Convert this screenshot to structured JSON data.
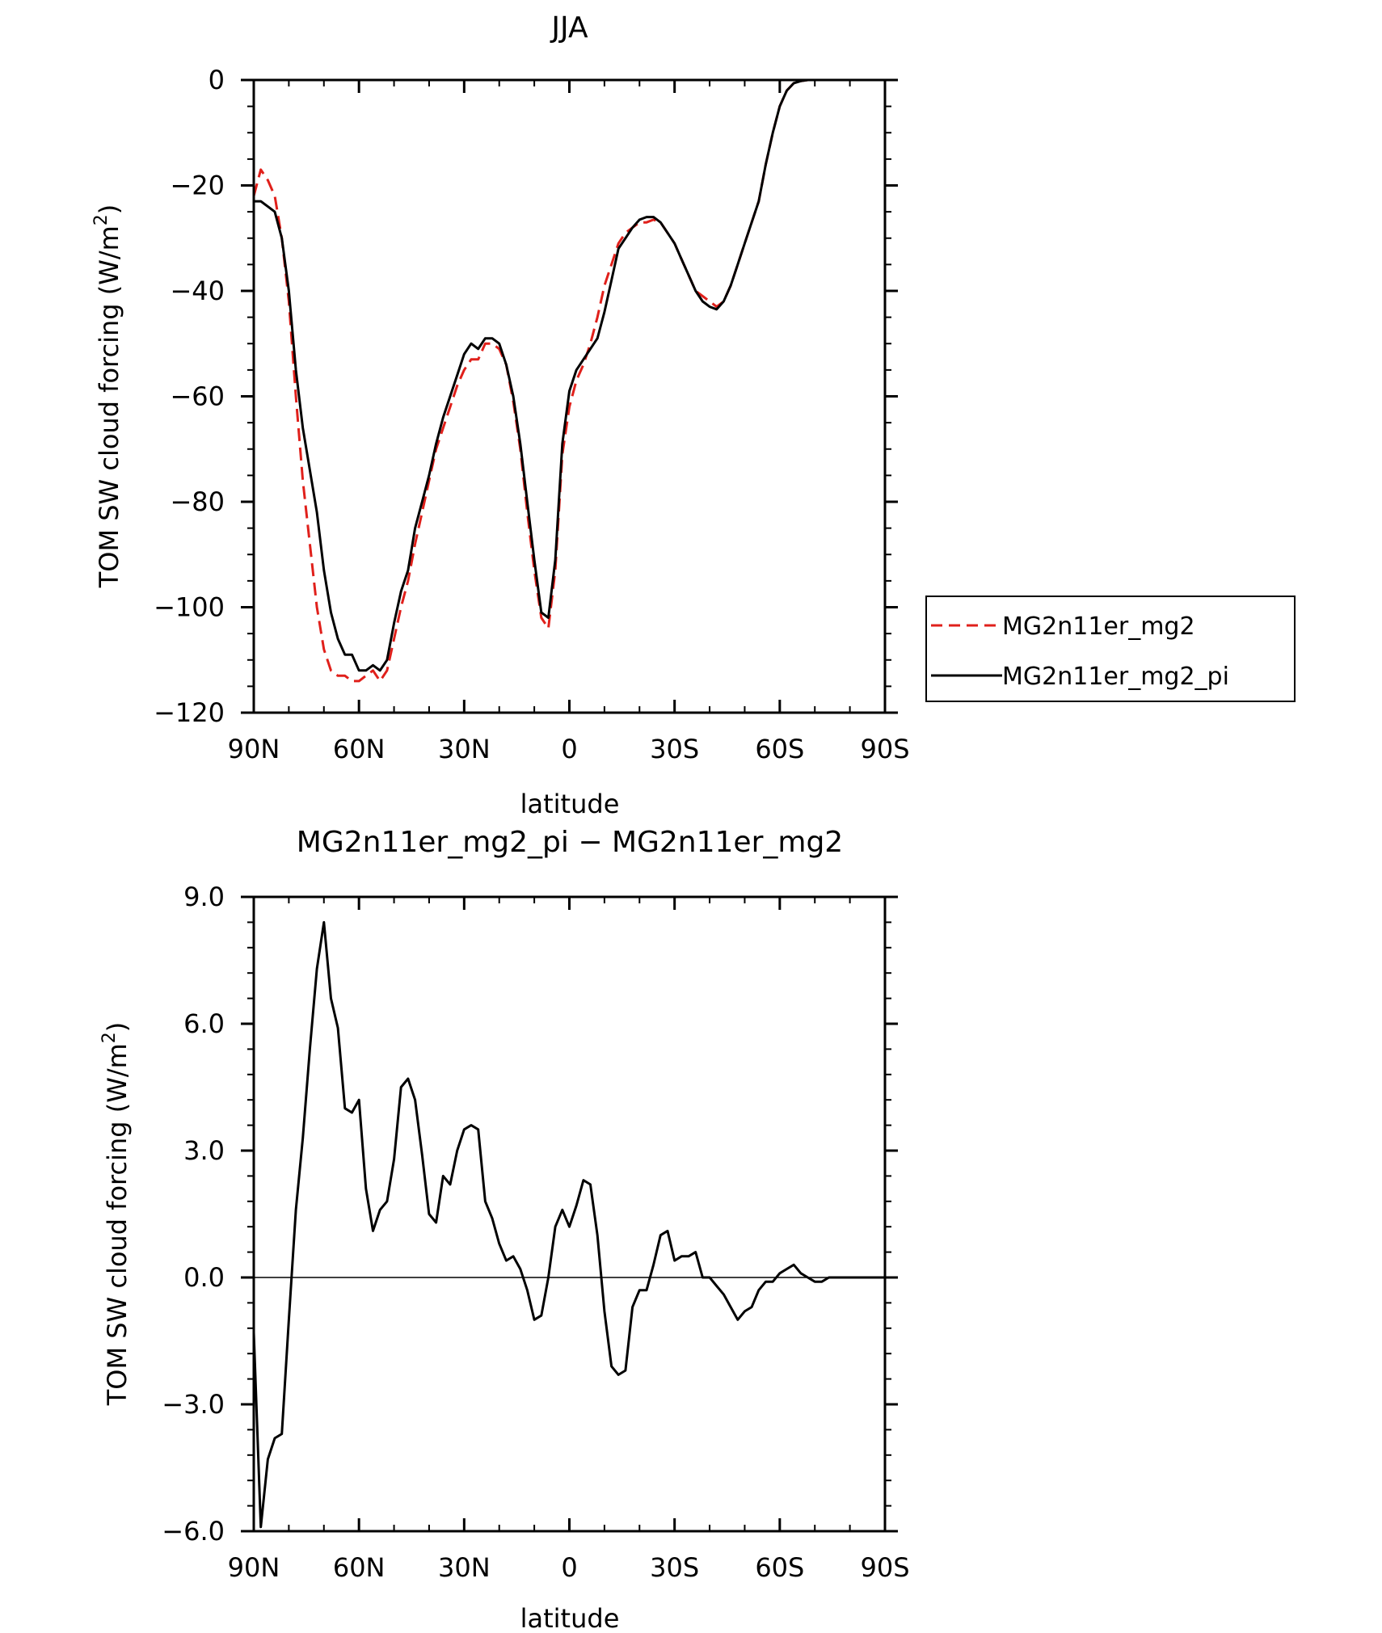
{
  "chart_data": [
    {
      "type": "line",
      "title": "JJA",
      "xlabel": "latitude",
      "ylabel": "TOM SW cloud forcing (W/m²)",
      "ylabel_main": "TOM SW cloud forcing (W/m",
      "ylabel_sup": "2",
      "ylabel_close": ")",
      "xlim": [
        90,
        -90
      ],
      "ylim": [
        -120,
        0
      ],
      "x_ticks": [
        90,
        60,
        30,
        0,
        -30,
        -60,
        -90
      ],
      "x_tick_labels": [
        "90N",
        "60N",
        "30N",
        "0",
        "30S",
        "60S",
        "90S"
      ],
      "y_ticks": [
        0,
        -20,
        -40,
        -60,
        -80,
        -100,
        -120
      ],
      "y_tick_labels": [
        "0",
        "−20",
        "−40",
        "−60",
        "−80",
        "−100",
        "−120"
      ],
      "legend": "right",
      "series": [
        {
          "name": "MG2n11er_mg2",
          "color": "#e0201b",
          "dash": "dashed",
          "points": [
            [
              90,
              -22
            ],
            [
              88,
              -17
            ],
            [
              86,
              -19
            ],
            [
              84,
              -22
            ],
            [
              82,
              -30
            ],
            [
              80,
              -42
            ],
            [
              78,
              -60
            ],
            [
              76,
              -76
            ],
            [
              74,
              -88
            ],
            [
              72,
              -100
            ],
            [
              70,
              -108
            ],
            [
              68,
              -112
            ],
            [
              66,
              -113
            ],
            [
              64,
              -113
            ],
            [
              62,
              -114
            ],
            [
              60,
              -114
            ],
            [
              58,
              -113
            ],
            [
              56,
              -112
            ],
            [
              54,
              -114
            ],
            [
              52,
              -112
            ],
            [
              50,
              -106
            ],
            [
              48,
              -100
            ],
            [
              46,
              -95
            ],
            [
              44,
              -88
            ],
            [
              42,
              -82
            ],
            [
              40,
              -76
            ],
            [
              38,
              -70
            ],
            [
              36,
              -66
            ],
            [
              34,
              -62
            ],
            [
              32,
              -58
            ],
            [
              30,
              -55
            ],
            [
              28,
              -53
            ],
            [
              26,
              -53
            ],
            [
              24,
              -50
            ],
            [
              22,
              -50
            ],
            [
              20,
              -51
            ],
            [
              18,
              -54
            ],
            [
              16,
              -61
            ],
            [
              14,
              -70
            ],
            [
              12,
              -82
            ],
            [
              10,
              -93
            ],
            [
              8,
              -102
            ],
            [
              6,
              -104
            ],
            [
              4,
              -93
            ],
            [
              2,
              -71
            ],
            [
              0,
              -62
            ],
            [
              -2,
              -57
            ],
            [
              -4,
              -54
            ],
            [
              -6,
              -50
            ],
            [
              -8,
              -45
            ],
            [
              -10,
              -39
            ],
            [
              -12,
              -35
            ],
            [
              -14,
              -31
            ],
            [
              -16,
              -29
            ],
            [
              -18,
              -28
            ],
            [
              -20,
              -27
            ],
            [
              -22,
              -27
            ],
            [
              -24,
              -26.5
            ],
            [
              -26,
              -27
            ],
            [
              -28,
              -29
            ],
            [
              -30,
              -31
            ],
            [
              -32,
              -34
            ],
            [
              -34,
              -37
            ],
            [
              -36,
              -40
            ],
            [
              -38,
              -41
            ],
            [
              -40,
              -42
            ],
            [
              -42,
              -43
            ],
            [
              -44,
              -42
            ],
            [
              -46,
              -39
            ],
            [
              -48,
              -35
            ],
            [
              -50,
              -31
            ],
            [
              -52,
              -27
            ],
            [
              -54,
              -23
            ],
            [
              -56,
              -16
            ],
            [
              -58,
              -10
            ],
            [
              -60,
              -5
            ],
            [
              -62,
              -2
            ],
            [
              -64,
              -0.6
            ],
            [
              -66,
              -0.2
            ],
            [
              -68,
              0
            ],
            [
              -70,
              0
            ],
            [
              -75,
              0
            ],
            [
              -80,
              0
            ],
            [
              -85,
              0
            ],
            [
              -90,
              0
            ]
          ]
        },
        {
          "name": "MG2n11er_mg2_pi",
          "color": "#000000",
          "dash": "solid",
          "points": [
            [
              90,
              -23
            ],
            [
              88,
              -23
            ],
            [
              86,
              -24
            ],
            [
              84,
              -25
            ],
            [
              82,
              -30
            ],
            [
              80,
              -40
            ],
            [
              78,
              -55
            ],
            [
              76,
              -66
            ],
            [
              74,
              -74
            ],
            [
              72,
              -82
            ],
            [
              70,
              -93
            ],
            [
              68,
              -101
            ],
            [
              66,
              -106
            ],
            [
              64,
              -109
            ],
            [
              62,
              -109
            ],
            [
              60,
              -112
            ],
            [
              58,
              -112
            ],
            [
              56,
              -111
            ],
            [
              54,
              -112
            ],
            [
              52,
              -110
            ],
            [
              50,
              -103
            ],
            [
              48,
              -97
            ],
            [
              46,
              -93
            ],
            [
              44,
              -85
            ],
            [
              42,
              -80
            ],
            [
              40,
              -75
            ],
            [
              38,
              -69
            ],
            [
              36,
              -64
            ],
            [
              34,
              -60
            ],
            [
              32,
              -56
            ],
            [
              30,
              -52
            ],
            [
              28,
              -50
            ],
            [
              26,
              -51
            ],
            [
              24,
              -49
            ],
            [
              22,
              -49
            ],
            [
              20,
              -50
            ],
            [
              18,
              -54
            ],
            [
              16,
              -60
            ],
            [
              14,
              -69
            ],
            [
              12,
              -80
            ],
            [
              10,
              -91
            ],
            [
              8,
              -101
            ],
            [
              6,
              -102
            ],
            [
              4,
              -91
            ],
            [
              2,
              -69
            ],
            [
              0,
              -59
            ],
            [
              -2,
              -55
            ],
            [
              -4,
              -53
            ],
            [
              -6,
              -51
            ],
            [
              -8,
              -49
            ],
            [
              -10,
              -44
            ],
            [
              -12,
              -38
            ],
            [
              -14,
              -32
            ],
            [
              -16,
              -30
            ],
            [
              -18,
              -28
            ],
            [
              -20,
              -26.5
            ],
            [
              -22,
              -26
            ],
            [
              -24,
              -26
            ],
            [
              -26,
              -27
            ],
            [
              -28,
              -29
            ],
            [
              -30,
              -31
            ],
            [
              -32,
              -34
            ],
            [
              -34,
              -37
            ],
            [
              -36,
              -40
            ],
            [
              -38,
              -42
            ],
            [
              -40,
              -43
            ],
            [
              -42,
              -43.5
            ],
            [
              -44,
              -42
            ],
            [
              -46,
              -39
            ],
            [
              -48,
              -35
            ],
            [
              -50,
              -31
            ],
            [
              -52,
              -27
            ],
            [
              -54,
              -23
            ],
            [
              -56,
              -16
            ],
            [
              -58,
              -10
            ],
            [
              -60,
              -5
            ],
            [
              -62,
              -2
            ],
            [
              -64,
              -0.6
            ],
            [
              -66,
              -0.2
            ],
            [
              -68,
              0
            ],
            [
              -70,
              0
            ],
            [
              -75,
              0
            ],
            [
              -80,
              0
            ],
            [
              -85,
              0
            ],
            [
              -90,
              0
            ]
          ]
        }
      ]
    },
    {
      "type": "line",
      "title": "MG2n11er_mg2_pi − MG2n11er_mg2",
      "xlabel": "latitude",
      "ylabel": "TOM SW cloud forcing (W/m²)",
      "ylabel_main": "TOM SW cloud forcing (W/m",
      "ylabel_sup": "2",
      "ylabel_close": ")",
      "xlim": [
        90,
        -90
      ],
      "ylim": [
        -6,
        9
      ],
      "x_ticks": [
        90,
        60,
        30,
        0,
        -30,
        -60,
        -90
      ],
      "x_tick_labels": [
        "90N",
        "60N",
        "30N",
        "0",
        "30S",
        "60S",
        "90S"
      ],
      "y_ticks": [
        9,
        6,
        3,
        0,
        -3,
        -6
      ],
      "y_tick_labels": [
        "9.0",
        "6.0",
        "3.0",
        "0.0",
        "−3.0",
        "−6.0"
      ],
      "series": [
        {
          "color": "#000000",
          "dash": "solid",
          "points": [
            [
              90,
              -1.3
            ],
            [
              88,
              -5.9
            ],
            [
              86,
              -4.3
            ],
            [
              84,
              -3.8
            ],
            [
              82,
              -3.7
            ],
            [
              80,
              -1.0
            ],
            [
              78,
              1.6
            ],
            [
              76,
              3.3
            ],
            [
              74,
              5.4
            ],
            [
              72,
              7.3
            ],
            [
              70,
              8.4
            ],
            [
              68,
              6.6
            ],
            [
              66,
              5.9
            ],
            [
              64,
              4.0
            ],
            [
              62,
              3.9
            ],
            [
              60,
              4.2
            ],
            [
              58,
              2.1
            ],
            [
              56,
              1.1
            ],
            [
              54,
              1.6
            ],
            [
              52,
              1.8
            ],
            [
              50,
              2.8
            ],
            [
              48,
              4.5
            ],
            [
              46,
              4.7
            ],
            [
              44,
              4.2
            ],
            [
              42,
              2.9
            ],
            [
              40,
              1.5
            ],
            [
              38,
              1.3
            ],
            [
              36,
              2.4
            ],
            [
              34,
              2.2
            ],
            [
              32,
              3.0
            ],
            [
              30,
              3.5
            ],
            [
              28,
              3.6
            ],
            [
              26,
              3.5
            ],
            [
              24,
              1.8
            ],
            [
              22,
              1.4
            ],
            [
              20,
              0.8
            ],
            [
              18,
              0.4
            ],
            [
              16,
              0.5
            ],
            [
              14,
              0.2
            ],
            [
              12,
              -0.3
            ],
            [
              10,
              -1.0
            ],
            [
              8,
              -0.9
            ],
            [
              6,
              0.0
            ],
            [
              4,
              1.2
            ],
            [
              2,
              1.6
            ],
            [
              0,
              1.2
            ],
            [
              -2,
              1.7
            ],
            [
              -4,
              2.3
            ],
            [
              -6,
              2.2
            ],
            [
              -8,
              1.0
            ],
            [
              -10,
              -0.8
            ],
            [
              -12,
              -2.1
            ],
            [
              -14,
              -2.3
            ],
            [
              -16,
              -2.2
            ],
            [
              -18,
              -0.7
            ],
            [
              -20,
              -0.3
            ],
            [
              -22,
              -0.3
            ],
            [
              -24,
              0.3
            ],
            [
              -26,
              1.0
            ],
            [
              -28,
              1.1
            ],
            [
              -30,
              0.4
            ],
            [
              -32,
              0.5
            ],
            [
              -34,
              0.5
            ],
            [
              -36,
              0.6
            ],
            [
              -38,
              0.0
            ],
            [
              -40,
              0.0
            ],
            [
              -42,
              -0.2
            ],
            [
              -44,
              -0.4
            ],
            [
              -46,
              -0.7
            ],
            [
              -48,
              -1.0
            ],
            [
              -50,
              -0.8
            ],
            [
              -52,
              -0.7
            ],
            [
              -54,
              -0.3
            ],
            [
              -56,
              -0.1
            ],
            [
              -58,
              -0.1
            ],
            [
              -60,
              0.1
            ],
            [
              -62,
              0.2
            ],
            [
              -64,
              0.3
            ],
            [
              -66,
              0.1
            ],
            [
              -68,
              0.0
            ],
            [
              -70,
              -0.1
            ],
            [
              -72,
              -0.1
            ],
            [
              -74,
              0.0
            ],
            [
              -78,
              0.0
            ],
            [
              -82,
              0.0
            ],
            [
              -86,
              0.0
            ],
            [
              -90,
              0.0
            ]
          ]
        }
      ]
    }
  ]
}
